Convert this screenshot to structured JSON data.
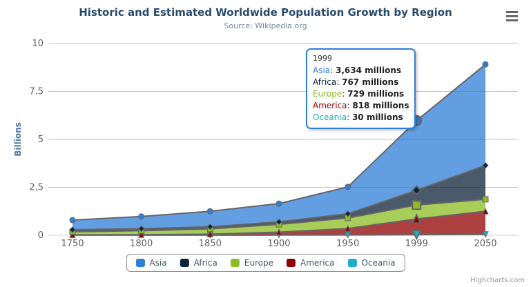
{
  "chart": {
    "title": "Historic and Estimated Worldwide Population Growth by Region",
    "subtitle": "Source: Wikipedia.org",
    "y_axis_title": "Billions",
    "credits": "Highcharts.com"
  },
  "colors": {
    "title_text": "#274b6d",
    "subtitle_text": "#6d869f",
    "axis_label_text": "#606060",
    "grid_line": "#c0c0c0",
    "axis_line": "#c0d0e0",
    "series_outline": "#666666",
    "legend_text": "#3e576f",
    "legend_border": "#909090",
    "tooltip_border": "#2f7ed8",
    "credits_text": "#909090"
  },
  "chart_data": {
    "type": "area",
    "stacking": "normal",
    "title": "Historic and Estimated Worldwide Population Growth by Region",
    "subtitle": "Source: Wikipedia.org",
    "xlabel": "",
    "ylabel": "Billions",
    "unit": "millions",
    "ylim": [
      0,
      10
    ],
    "yticks": [
      0,
      2.5,
      5,
      7.5,
      10
    ],
    "grid": true,
    "legend_position": "bottom",
    "hovered_category": "1999",
    "categories": [
      "1750",
      "1800",
      "1850",
      "1900",
      "1950",
      "1999",
      "2050"
    ],
    "series": [
      {
        "name": "Asia",
        "color": "#2f7ed8",
        "marker": "circle",
        "values": [
          502,
          635,
          809,
          947,
          1402,
          3634,
          5268
        ]
      },
      {
        "name": "Africa",
        "color": "#0d233a",
        "marker": "diamond",
        "values": [
          106,
          107,
          111,
          133,
          221,
          767,
          1766
        ]
      },
      {
        "name": "Europe",
        "color": "#8bbc21",
        "marker": "square",
        "values": [
          163,
          203,
          276,
          408,
          547,
          729,
          628
        ]
      },
      {
        "name": "America",
        "color": "#910000",
        "marker": "triangle",
        "values": [
          18,
          31,
          54,
          156,
          339,
          818,
          1201
        ]
      },
      {
        "name": "Oceania",
        "color": "#1aadce",
        "marker": "triangle-down",
        "values": [
          2,
          2,
          2,
          6,
          13,
          30,
          46
        ]
      }
    ]
  },
  "tooltip": {
    "header": "1999",
    "rows": [
      {
        "name": "Asia",
        "color": "#2f7ed8",
        "value": "3,634 millions"
      },
      {
        "name": "Africa",
        "color": "#0d233a",
        "value": "767 millions"
      },
      {
        "name": "Europe",
        "color": "#8bbc21",
        "value": "729 millions"
      },
      {
        "name": "America",
        "color": "#910000",
        "value": "818 millions"
      },
      {
        "name": "Oceania",
        "color": "#1aadce",
        "value": "30 millions"
      }
    ]
  }
}
